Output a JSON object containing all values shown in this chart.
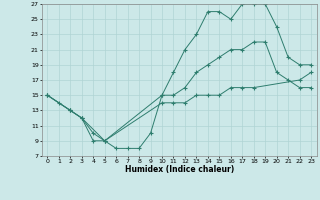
{
  "title": "",
  "xlabel": "Humidex (Indice chaleur)",
  "background_color": "#cce8e8",
  "grid_color": "#b0d4d4",
  "line_color": "#2e7d6e",
  "xlim": [
    -0.5,
    23.5
  ],
  "ylim": [
    7,
    27
  ],
  "xticks": [
    0,
    1,
    2,
    3,
    4,
    5,
    6,
    7,
    8,
    9,
    10,
    11,
    12,
    13,
    14,
    15,
    16,
    17,
    18,
    19,
    20,
    21,
    22,
    23
  ],
  "yticks": [
    7,
    9,
    11,
    13,
    15,
    17,
    19,
    21,
    23,
    25,
    27
  ],
  "line1_x": [
    0,
    1,
    2,
    3,
    4,
    5,
    6,
    7,
    8,
    9,
    10,
    11,
    12,
    13,
    14,
    15,
    16,
    17,
    18,
    19,
    20,
    21,
    22,
    23
  ],
  "line1_y": [
    15,
    14,
    13,
    12,
    9,
    9,
    8,
    8,
    8,
    10,
    15,
    18,
    21,
    23,
    26,
    26,
    25,
    27,
    27,
    27,
    24,
    20,
    19,
    19
  ],
  "line2_x": [
    0,
    2,
    3,
    4,
    5,
    10,
    11,
    12,
    13,
    14,
    15,
    16,
    17,
    18,
    19,
    20,
    21,
    22,
    23
  ],
  "line2_y": [
    15,
    13,
    12,
    10,
    9,
    15,
    15,
    16,
    18,
    19,
    20,
    21,
    21,
    22,
    22,
    18,
    17,
    16,
    16
  ],
  "line3_x": [
    0,
    2,
    3,
    5,
    10,
    11,
    12,
    13,
    14,
    15,
    16,
    17,
    18,
    22,
    23
  ],
  "line3_y": [
    15,
    13,
    12,
    9,
    14,
    14,
    14,
    15,
    15,
    15,
    16,
    16,
    16,
    17,
    18
  ]
}
